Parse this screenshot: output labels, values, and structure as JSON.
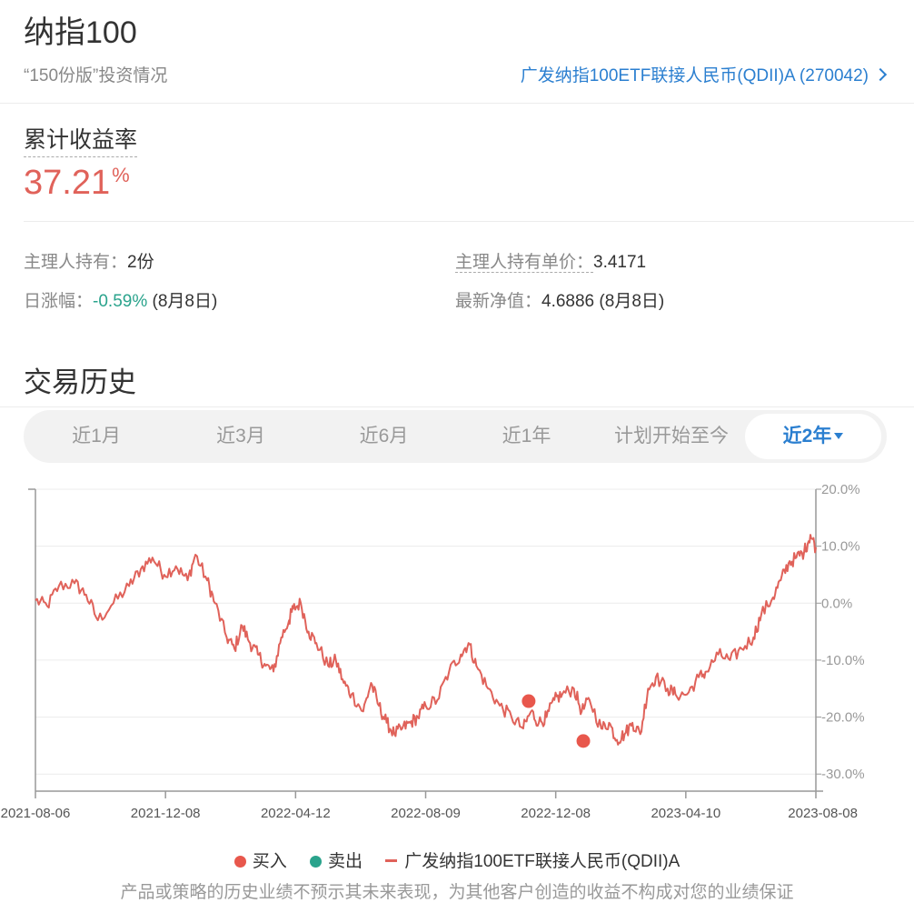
{
  "header": {
    "title": "纳指100",
    "subtitle": "“150份版”投资情况",
    "fund_link": "广发纳指100ETF联接人民币(QDII)A (270042)"
  },
  "summary": {
    "return_label": "累计收益率",
    "return_value": "37.21",
    "return_unit": "%"
  },
  "info": {
    "holding_label": "主理人持有：",
    "holding_value": "2份",
    "unit_cost_label": "主理人持有单价：",
    "unit_cost_value": "3.4171",
    "daily_change_label": "日涨幅：",
    "daily_change_value": "-0.59%",
    "daily_change_date": " (8月8日)",
    "nav_label": "最新净值：",
    "nav_value": "4.6886",
    "nav_date": " (8月8日)"
  },
  "history": {
    "title": "交易历史",
    "tabs": [
      {
        "label": "近1月"
      },
      {
        "label": "近3月"
      },
      {
        "label": "近6月"
      },
      {
        "label": "近1年"
      },
      {
        "label": "计划开始至今"
      },
      {
        "label": "近2年"
      }
    ],
    "active_tab": "近2年"
  },
  "colors": {
    "line": "#e0625a",
    "buy": "#e8574c",
    "sell": "#2aa38c",
    "link": "#2b7fd0"
  },
  "chart_data": {
    "type": "line",
    "series_name": "广发纳指100ETF联接人民币(QDII)A",
    "ylim": [
      -33,
      20
    ],
    "yticks": [
      20,
      10,
      0,
      -10,
      -20,
      -30
    ],
    "ytick_labels": [
      "20.0%",
      "10.0%",
      "0.0%",
      "-10.0%",
      "-20.0%",
      "-30.0%"
    ],
    "xticks": [
      "2021-08-06",
      "2021-12-08",
      "2022-04-12",
      "2022-08-09",
      "2022-12-08",
      "2023-04-10",
      "2023-08-08"
    ],
    "x_range": [
      0,
      100
    ],
    "anchors": [
      [
        0,
        0.5
      ],
      [
        1.5,
        -0.5
      ],
      [
        3,
        3
      ],
      [
        5,
        3.5
      ],
      [
        6.5,
        1.5
      ],
      [
        8,
        -3
      ],
      [
        10,
        0
      ],
      [
        12,
        3
      ],
      [
        13.5,
        6
      ],
      [
        15,
        8
      ],
      [
        16.5,
        5
      ],
      [
        18,
        6.5
      ],
      [
        19.5,
        4
      ],
      [
        20.5,
        8.5
      ],
      [
        22,
        4
      ],
      [
        23,
        0
      ],
      [
        24.5,
        -6
      ],
      [
        25.5,
        -8
      ],
      [
        26.5,
        -4
      ],
      [
        27.5,
        -7
      ],
      [
        28.5,
        -9
      ],
      [
        29.5,
        -11
      ],
      [
        30.5,
        -12
      ],
      [
        31.5,
        -6
      ],
      [
        32.5,
        -3
      ],
      [
        33,
        -1
      ],
      [
        34,
        0
      ],
      [
        35,
        -5
      ],
      [
        36,
        -7
      ],
      [
        37.5,
        -11
      ],
      [
        38.5,
        -10
      ],
      [
        39.5,
        -14
      ],
      [
        40.5,
        -16
      ],
      [
        42,
        -19
      ],
      [
        43,
        -14
      ],
      [
        44,
        -18
      ],
      [
        45,
        -21
      ],
      [
        46,
        -23
      ],
      [
        47,
        -22
      ],
      [
        48,
        -21
      ],
      [
        49,
        -20
      ],
      [
        50,
        -18
      ],
      [
        51.5,
        -17
      ],
      [
        53,
        -12
      ],
      [
        54.5,
        -9
      ],
      [
        55.5,
        -7
      ],
      [
        56.5,
        -11
      ],
      [
        58,
        -15
      ],
      [
        59.5,
        -18
      ],
      [
        61,
        -20
      ],
      [
        62.5,
        -22
      ],
      [
        63.5,
        -19
      ],
      [
        64.5,
        -21
      ],
      [
        65.5,
        -20
      ],
      [
        66.5,
        -17
      ],
      [
        67.5,
        -16
      ],
      [
        69,
        -15
      ],
      [
        70,
        -19
      ],
      [
        71,
        -17
      ],
      [
        72.5,
        -22
      ],
      [
        73.5,
        -21
      ],
      [
        74.5,
        -24
      ],
      [
        75.5,
        -23
      ],
      [
        76.5,
        -21
      ],
      [
        77.5,
        -23
      ],
      [
        78.5,
        -15
      ],
      [
        79.5,
        -13
      ],
      [
        81,
        -15
      ],
      [
        82,
        -16
      ],
      [
        83.5,
        -16
      ],
      [
        85,
        -13
      ],
      [
        86,
        -12
      ],
      [
        87.5,
        -9
      ],
      [
        89,
        -10
      ],
      [
        90.5,
        -8
      ],
      [
        92,
        -6
      ],
      [
        93,
        -2
      ],
      [
        94.5,
        1
      ],
      [
        95.5,
        4
      ],
      [
        96.5,
        7
      ],
      [
        97.5,
        8
      ],
      [
        98.5,
        9
      ],
      [
        99.3,
        12
      ],
      [
        100,
        9.8
      ]
    ],
    "buy_points": [
      [
        63.2,
        -17.2
      ],
      [
        70.2,
        -24.2
      ]
    ],
    "sell_points": []
  },
  "legend": {
    "buy": "买入",
    "sell": "卖出",
    "series": "广发纳指100ETF联接人民币(QDII)A"
  },
  "disclaimer": "产品或策略的历史业绩不预示其未来表现，为其他客户创造的收益不构成对您的业绩保证"
}
